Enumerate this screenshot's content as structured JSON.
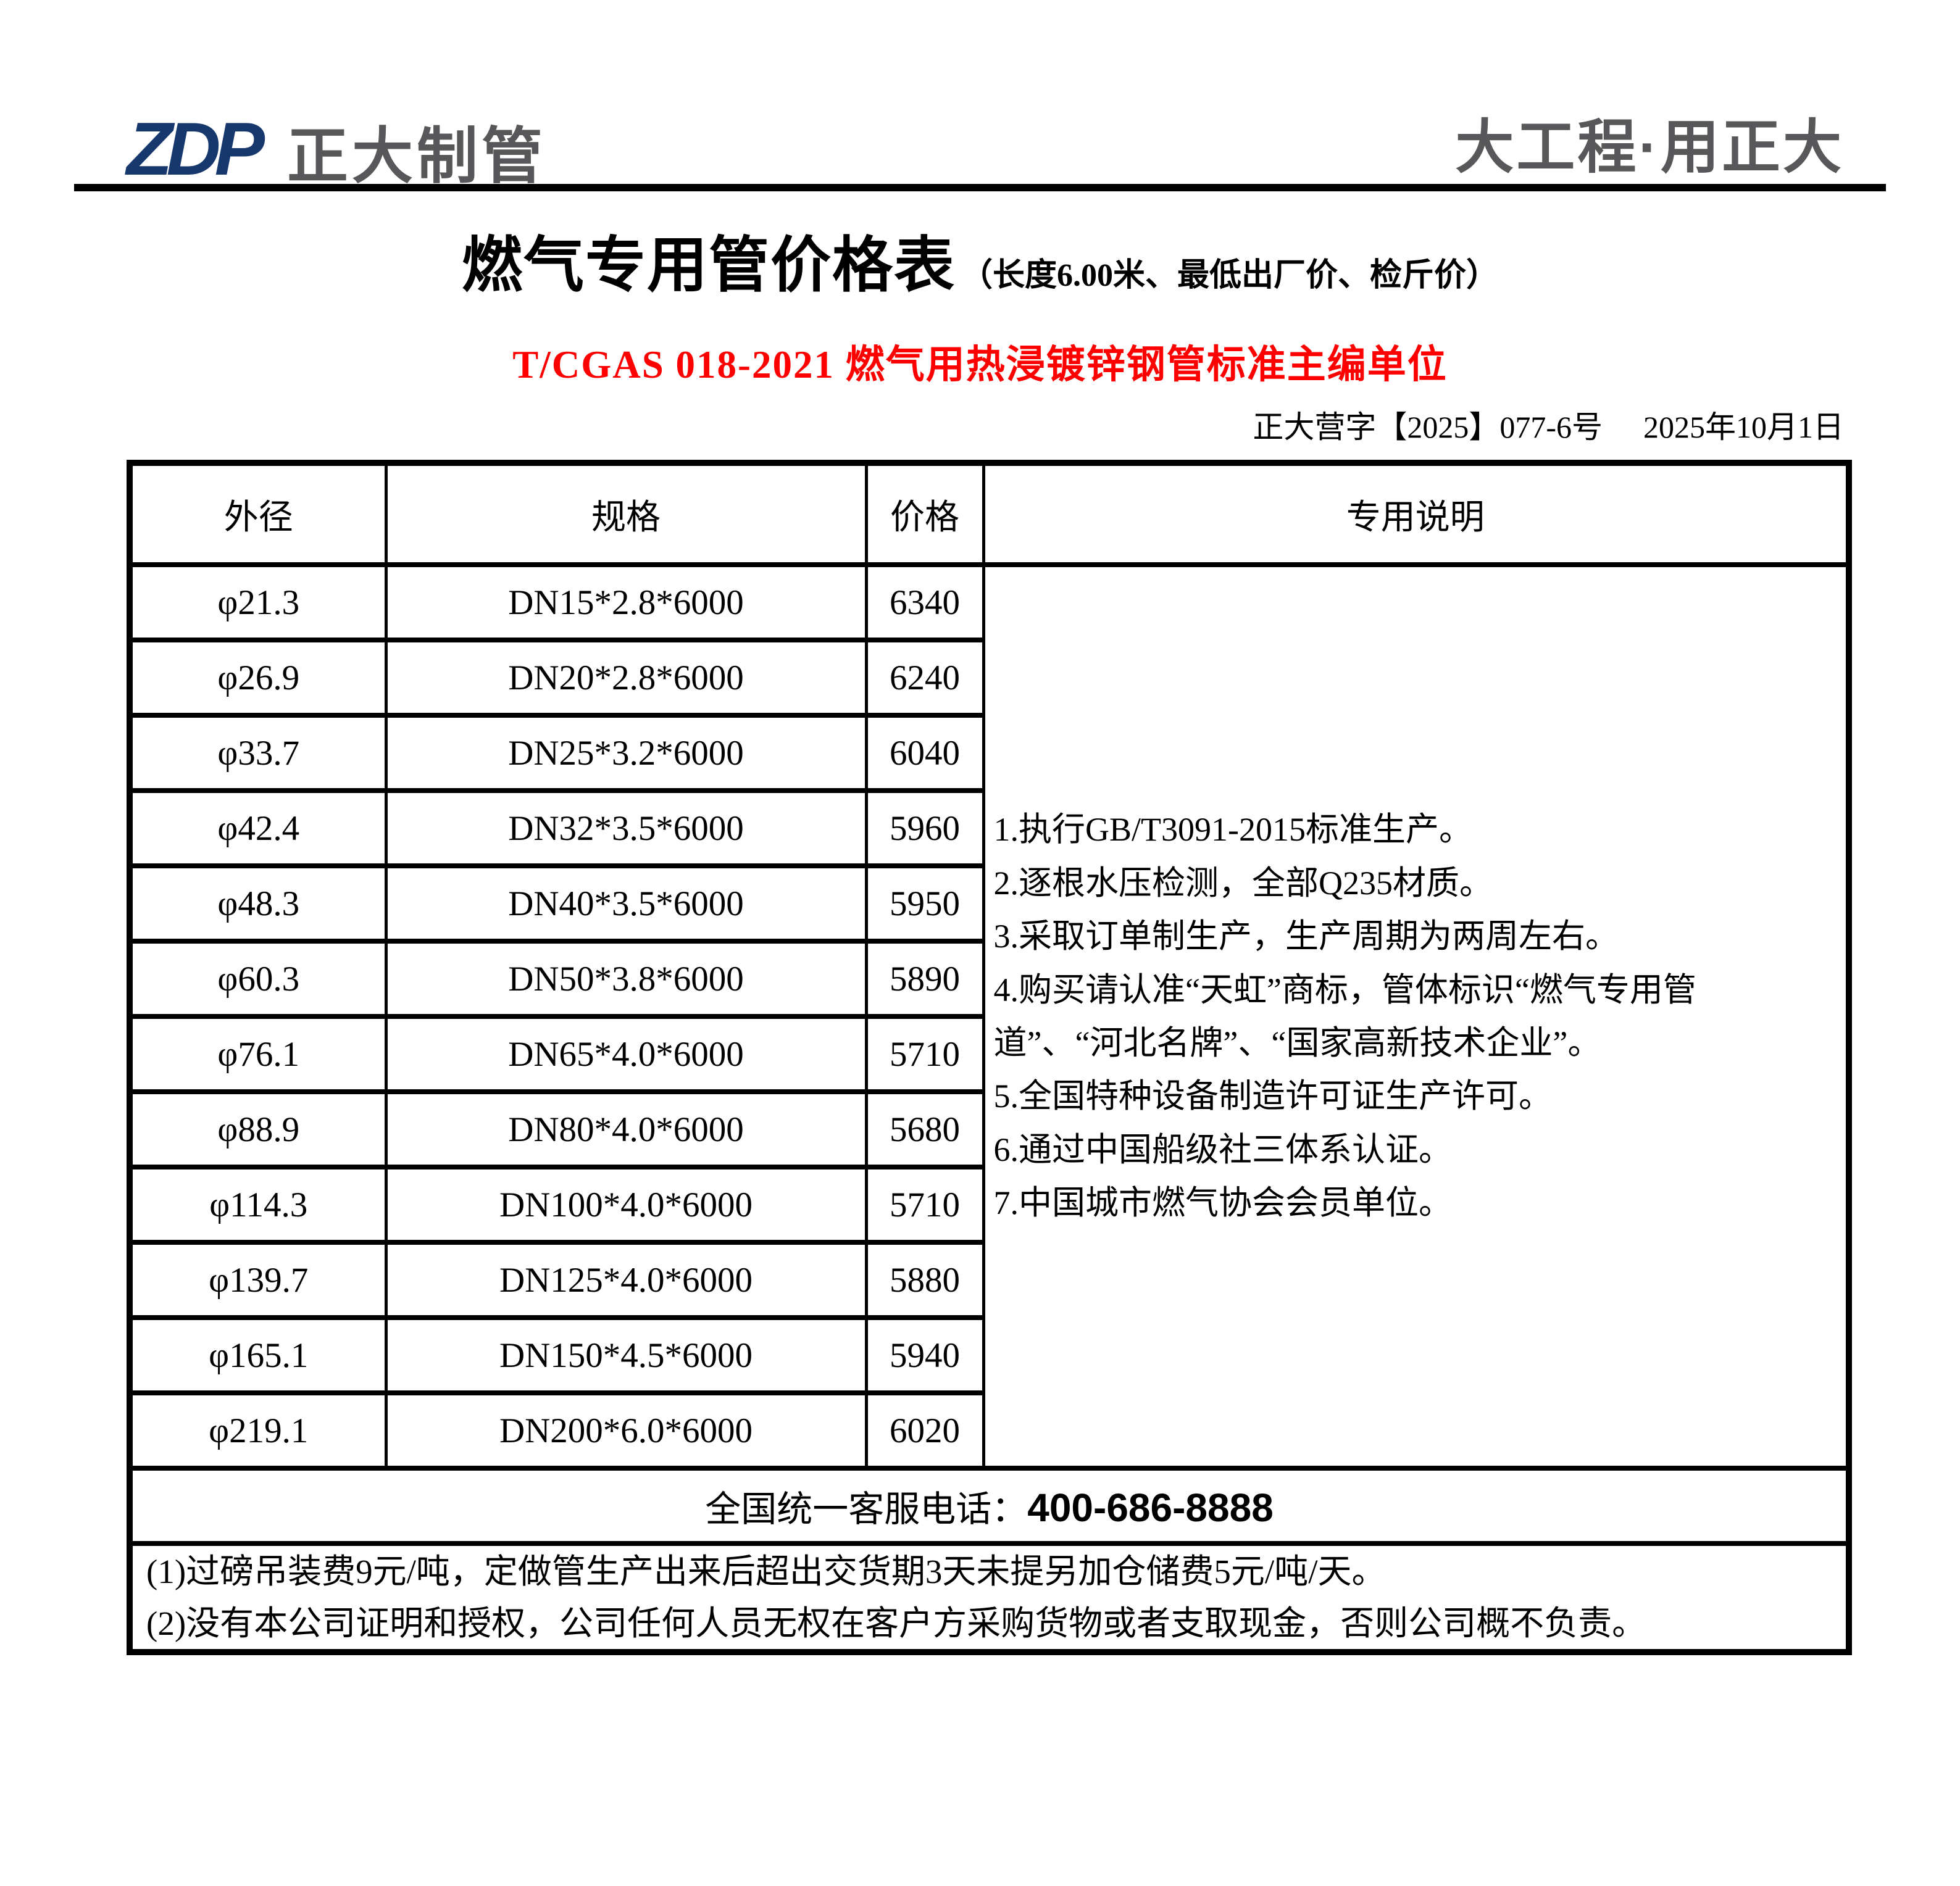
{
  "header": {
    "logo_zdp": "ZDP",
    "logo_company": "正大制管",
    "slogan": "大工程·用正大"
  },
  "title": {
    "main": "燃气专用管价格表",
    "subtitle": "（长度6.00米、最低出厂价、检斤价）",
    "standard_line": "T/CGAS 018-2021 燃气用热浸镀锌钢管标准主编单位",
    "doc_number": "正大营字【2025】077-6号",
    "date": "2025年10月1日"
  },
  "table": {
    "headers": [
      "外径",
      "规格",
      "价格",
      "专用说明"
    ],
    "rows": [
      {
        "od": "φ21.3",
        "spec": "DN15*2.8*6000",
        "price": "6340"
      },
      {
        "od": "φ26.9",
        "spec": "DN20*2.8*6000",
        "price": "6240"
      },
      {
        "od": "φ33.7",
        "spec": "DN25*3.2*6000",
        "price": "6040"
      },
      {
        "od": "φ42.4",
        "spec": "DN32*3.5*6000",
        "price": "5960"
      },
      {
        "od": "φ48.3",
        "spec": "DN40*3.5*6000",
        "price": "5950"
      },
      {
        "od": "φ60.3",
        "spec": "DN50*3.8*6000",
        "price": "5890"
      },
      {
        "od": "φ76.1",
        "spec": "DN65*4.0*6000",
        "price": "5710"
      },
      {
        "od": "φ88.9",
        "spec": "DN80*4.0*6000",
        "price": "5680"
      },
      {
        "od": "φ114.3",
        "spec": "DN100*4.0*6000",
        "price": "5710"
      },
      {
        "od": "φ139.7",
        "spec": "DN125*4.0*6000",
        "price": "5880"
      },
      {
        "od": "φ165.1",
        "spec": "DN150*4.5*6000",
        "price": "5940"
      },
      {
        "od": "φ219.1",
        "spec": "DN200*6.0*6000",
        "price": "6020"
      }
    ],
    "notes": [
      "1.执行GB/T3091-2015标准生产。",
      "2.逐根水压检测，全部Q235材质。",
      "3.采取订单制生产，生产周期为两周左右。",
      "4.购买请认准“天虹”商标，管体标识“燃气专用管道”、“河北名牌”、“国家高新技术企业”。",
      "5.全国特种设备制造许可证生产许可。",
      "6.通过中国船级社三体系认证。",
      "7.中国城市燃气协会会员单位。"
    ],
    "phone_label": "全国统一客服电话：",
    "phone_number": "400-686-8888"
  },
  "footer_notes": [
    "(1)过磅吊装费9元/吨，定做管生产出来后超出交货期3天未提另加仓储费5元/吨/天。",
    "(2)没有本公司证明和授权，公司任何人员无权在客户方采购货物或者支取现金，否则公司概不负责。"
  ],
  "colors": {
    "logo_navy": "#17386d",
    "logo_gray": "#585759",
    "accent_red": "#fe0000",
    "text_black": "#000000"
  }
}
